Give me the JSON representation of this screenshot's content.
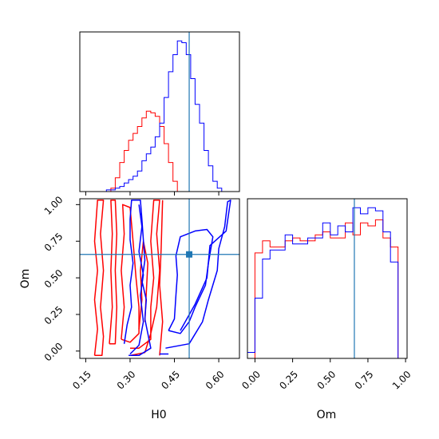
{
  "chart_data": {
    "type": "corner",
    "parameters": [
      "H0",
      "Om"
    ],
    "truth": {
      "H0": 0.5,
      "Om": 0.66
    },
    "colors": {
      "blue": "#0000ff",
      "red": "#ff0000",
      "truth": "#1f77b4",
      "frame": "#000000"
    },
    "h0_marginal": {
      "xlim": [
        0.13,
        0.67
      ],
      "bin_edges": [
        0.13,
        0.145,
        0.16,
        0.175,
        0.19,
        0.205,
        0.22,
        0.235,
        0.25,
        0.265,
        0.28,
        0.295,
        0.31,
        0.325,
        0.34,
        0.355,
        0.37,
        0.385,
        0.4,
        0.415,
        0.43,
        0.445,
        0.46,
        0.475,
        0.49,
        0.505,
        0.52,
        0.535,
        0.55,
        0.565,
        0.58,
        0.595,
        0.61,
        0.625,
        0.64,
        0.655,
        0.67
      ],
      "blue_counts": [
        0,
        0,
        0,
        0,
        0,
        0,
        1,
        1,
        2,
        3,
        5,
        7,
        9,
        12,
        18,
        22,
        26,
        32,
        40,
        55,
        70,
        80,
        88,
        87,
        80,
        66,
        51,
        40,
        24,
        15,
        6,
        2,
        0,
        0,
        0,
        0
      ],
      "red_counts": [
        0,
        0,
        0,
        0,
        0,
        0,
        0,
        2,
        8,
        17,
        24,
        30,
        34,
        38,
        43,
        47,
        46,
        44,
        38,
        28,
        17,
        6,
        0,
        0,
        0,
        0,
        0,
        0,
        0,
        0,
        0,
        0,
        0,
        0,
        0,
        0
      ]
    },
    "om_marginal": {
      "xlim": [
        -0.05,
        1.01
      ],
      "bin_edges": [
        -0.05,
        0.0,
        0.05,
        0.1,
        0.15,
        0.2,
        0.25,
        0.3,
        0.35,
        0.4,
        0.45,
        0.5,
        0.55,
        0.6,
        0.65,
        0.7,
        0.75,
        0.8,
        0.85,
        0.9,
        0.95,
        1.0
      ],
      "blue_counts": [
        2,
        20,
        33,
        36,
        36,
        41,
        38,
        38,
        40,
        40,
        45,
        41,
        44,
        42,
        50,
        48,
        50,
        49,
        42,
        32,
        0
      ],
      "red_counts": [
        0,
        35,
        39,
        37,
        37,
        39,
        40,
        39,
        39,
        41,
        42,
        40,
        40,
        45,
        41,
        45,
        44,
        46,
        40,
        37,
        0
      ]
    },
    "joint": {
      "xlim": [
        0.13,
        0.67
      ],
      "ylim": [
        -0.05,
        1.04
      ],
      "blue_contours": [
        [
          [
            0.295,
            -0.03
          ],
          [
            0.33,
            -0.03
          ],
          [
            0.37,
            0.02
          ],
          [
            0.36,
            0.12
          ],
          [
            0.35,
            0.22
          ],
          [
            0.355,
            0.35
          ],
          [
            0.34,
            0.48
          ],
          [
            0.35,
            0.62
          ],
          [
            0.345,
            0.76
          ],
          [
            0.34,
            0.9
          ],
          [
            0.335,
            1.03
          ],
          [
            0.305,
            1.03
          ],
          [
            0.3,
            0.9
          ],
          [
            0.3,
            0.76
          ],
          [
            0.31,
            0.6
          ],
          [
            0.3,
            0.45
          ],
          [
            0.305,
            0.3
          ],
          [
            0.29,
            0.18
          ],
          [
            0.28,
            0.05
          ]
        ],
        [
          [
            0.3,
            -0.02
          ],
          [
            0.33,
            0.04
          ],
          [
            0.345,
            0.2
          ],
          [
            0.335,
            0.38
          ],
          [
            0.345,
            0.52
          ],
          [
            0.33,
            0.68
          ],
          [
            0.34,
            0.85
          ],
          [
            0.33,
            1.0
          ]
        ],
        [
          [
            0.42,
            0.02
          ],
          [
            0.5,
            0.05
          ],
          [
            0.545,
            0.2
          ],
          [
            0.565,
            0.35
          ],
          [
            0.595,
            0.55
          ],
          [
            0.6,
            0.7
          ],
          [
            0.62,
            0.85
          ],
          [
            0.63,
            1.02
          ],
          [
            0.64,
            1.03
          ],
          [
            0.625,
            0.82
          ],
          [
            0.57,
            0.72
          ],
          [
            0.56,
            0.5
          ],
          [
            0.52,
            0.32
          ],
          [
            0.47,
            0.14
          ]
        ],
        [
          [
            0.43,
            0.14
          ],
          [
            0.45,
            0.22
          ],
          [
            0.455,
            0.38
          ],
          [
            0.46,
            0.52
          ],
          [
            0.455,
            0.65
          ],
          [
            0.47,
            0.78
          ],
          [
            0.52,
            0.82
          ],
          [
            0.56,
            0.83
          ],
          [
            0.58,
            0.78
          ],
          [
            0.565,
            0.6
          ],
          [
            0.555,
            0.45
          ],
          [
            0.52,
            0.3
          ],
          [
            0.5,
            0.2
          ],
          [
            0.47,
            0.12
          ],
          [
            0.43,
            0.14
          ]
        ],
        [
          [
            0.4,
            -0.02
          ],
          [
            0.43,
            -0.02
          ]
        ]
      ],
      "red_contours": [
        [
          [
            0.18,
            -0.03
          ],
          [
            0.19,
            0.15
          ],
          [
            0.18,
            0.35
          ],
          [
            0.19,
            0.55
          ],
          [
            0.18,
            0.75
          ],
          [
            0.19,
            1.03
          ],
          [
            0.21,
            1.03
          ],
          [
            0.2,
            0.8
          ],
          [
            0.21,
            0.55
          ],
          [
            0.2,
            0.3
          ],
          [
            0.21,
            0.1
          ],
          [
            0.205,
            -0.03
          ],
          [
            0.18,
            -0.03
          ]
        ],
        [
          [
            0.23,
            0.05
          ],
          [
            0.24,
            0.3
          ],
          [
            0.235,
            0.55
          ],
          [
            0.24,
            0.8
          ],
          [
            0.235,
            1.03
          ],
          [
            0.25,
            1.03
          ],
          [
            0.255,
            0.8
          ],
          [
            0.25,
            0.55
          ],
          [
            0.255,
            0.3
          ],
          [
            0.25,
            0.05
          ],
          [
            0.23,
            0.05
          ]
        ],
        [
          [
            0.27,
            0.08
          ],
          [
            0.28,
            0.3
          ],
          [
            0.27,
            0.55
          ],
          [
            0.28,
            0.8
          ],
          [
            0.275,
            1.0
          ],
          [
            0.3,
            0.98
          ],
          [
            0.31,
            0.75
          ],
          [
            0.32,
            0.5
          ],
          [
            0.33,
            0.3
          ],
          [
            0.33,
            0.12
          ],
          [
            0.3,
            0.06
          ],
          [
            0.27,
            0.08
          ]
        ],
        [
          [
            0.3,
            0.02
          ],
          [
            0.33,
            0.02
          ],
          [
            0.37,
            0.08
          ],
          [
            0.37,
            0.3
          ],
          [
            0.38,
            0.5
          ],
          [
            0.37,
            0.75
          ],
          [
            0.38,
            1.03
          ],
          [
            0.4,
            1.03
          ],
          [
            0.39,
            0.8
          ],
          [
            0.4,
            0.55
          ],
          [
            0.39,
            0.3
          ],
          [
            0.37,
            0.12
          ],
          [
            0.35,
            -0.01
          ],
          [
            0.3,
            -0.03
          ]
        ],
        [
          [
            0.33,
            0.15
          ],
          [
            0.34,
            0.35
          ],
          [
            0.335,
            0.55
          ],
          [
            0.345,
            0.75
          ],
          [
            0.36,
            0.6
          ],
          [
            0.355,
            0.4
          ],
          [
            0.35,
            0.2
          ]
        ],
        [
          [
            0.4,
            -0.03
          ],
          [
            0.41,
            0.2
          ],
          [
            0.4,
            0.45
          ],
          [
            0.405,
            0.7
          ],
          [
            0.41,
            1.03
          ]
        ]
      ]
    },
    "h0_ticks": [
      0.15,
      0.3,
      0.45,
      0.6
    ],
    "h0_tick_labels": [
      "0.15",
      "0.30",
      "0.45",
      "0.60"
    ],
    "om_ticks": [
      0.0,
      0.25,
      0.5,
      0.75,
      1.0
    ],
    "om_tick_labels": [
      "0.00",
      "0.25",
      "0.50",
      "0.75",
      "1.00"
    ],
    "xlabel_joint": "H0",
    "ylabel_joint": "Om",
    "xlabel_om": "Om"
  }
}
